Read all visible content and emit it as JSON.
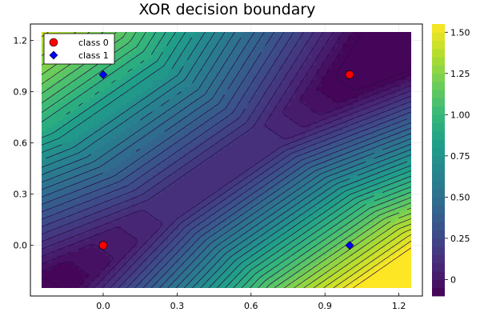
{
  "chart_data": {
    "type": "contour",
    "title": "XOR decision boundary",
    "xlabel": "",
    "ylabel": "",
    "xlim": [
      -0.25,
      1.25
    ],
    "ylim": [
      -0.25,
      1.25
    ],
    "xticks": [
      0.0,
      0.3,
      0.6,
      0.9,
      1.2
    ],
    "xtick_labels": [
      "0.0",
      "0.3",
      "0.6",
      "0.9",
      "1.2"
    ],
    "yticks": [
      0.0,
      0.3,
      0.6,
      0.9,
      1.2
    ],
    "ytick_labels": [
      "0.0",
      "0.3",
      "0.6",
      "0.9",
      "1.2"
    ],
    "grid": true,
    "colormap": "viridis",
    "colorbar": {
      "range": [
        -0.1,
        1.55
      ],
      "ticks": [
        0,
        0.25,
        0.5,
        0.75,
        1.0,
        1.25,
        1.5
      ],
      "tick_labels": [
        "0",
        "0.25",
        "0.50",
        "0.75",
        "1.00",
        "1.25",
        "1.50"
      ]
    },
    "contour_levels": [
      -0.1,
      -0.05,
      0.0,
      0.05,
      0.1,
      0.15,
      0.2,
      0.25,
      0.3,
      0.35,
      0.4,
      0.45,
      0.5,
      0.55,
      0.6,
      0.65,
      0.7,
      0.75,
      0.8,
      0.85,
      0.9,
      0.95,
      1.0,
      1.05,
      1.1,
      1.15,
      1.2,
      1.25,
      1.3,
      1.35,
      1.4,
      1.45,
      1.5,
      1.55
    ],
    "series": [
      {
        "name": "class 0",
        "marker": "circle",
        "color": "#ff0000",
        "points": [
          [
            0,
            0
          ],
          [
            1,
            1
          ]
        ]
      },
      {
        "name": "class 1",
        "marker": "diamond",
        "color": "#0000ff",
        "points": [
          [
            0,
            1
          ],
          [
            1,
            0
          ]
        ]
      }
    ],
    "legend_position": "top-left"
  }
}
